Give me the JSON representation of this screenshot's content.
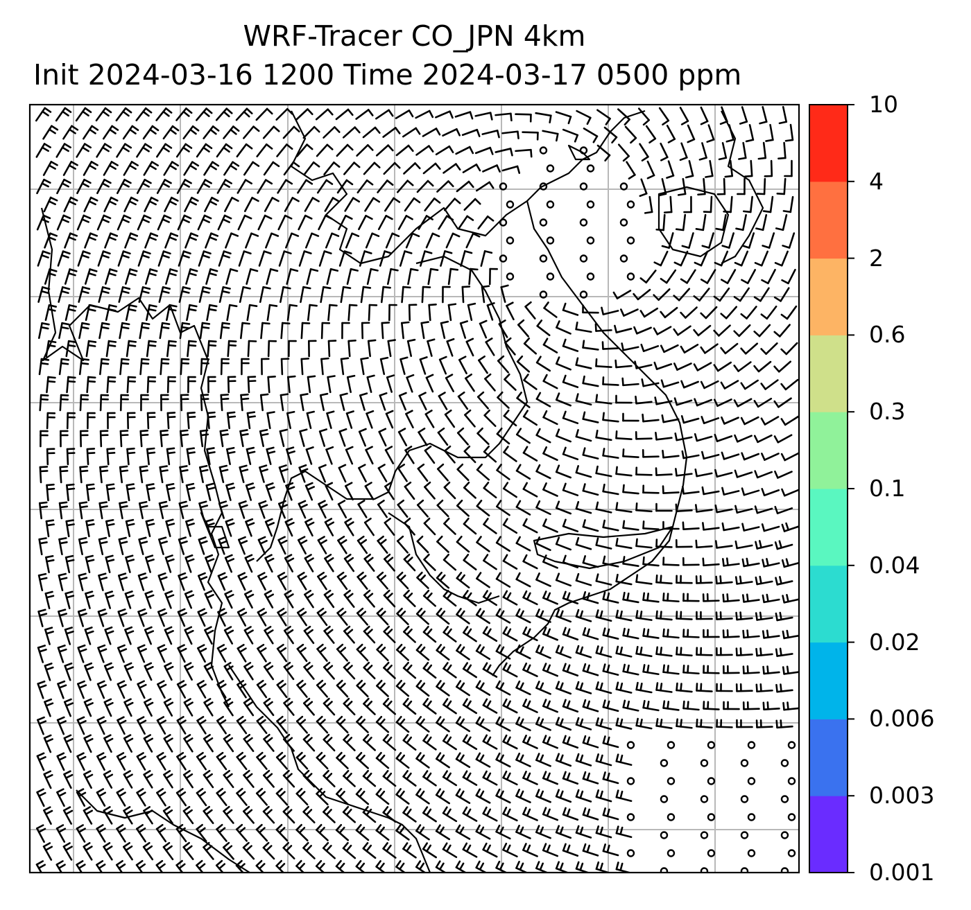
{
  "title": {
    "line1": "WRF-Tracer CO_JPN 4km",
    "line2": "Init 2024-03-16 1200 Time 2024-03-17 0500 ppm"
  },
  "colorbar": {
    "levels": [
      "0.001",
      "0.003",
      "0.006",
      "0.02",
      "0.04",
      "0.1",
      "0.3",
      "0.6",
      "2",
      "4",
      "10"
    ],
    "colors": [
      "#6a2cff",
      "#3a72ef",
      "#00b4ea",
      "#2cdcd0",
      "#5af7c0",
      "#90f29a",
      "#cfe08a",
      "#fdb464",
      "#ff7040",
      "#ff2a18"
    ]
  },
  "map": {
    "gridlines": true,
    "wind_barbs": true,
    "coastlines": true
  }
}
